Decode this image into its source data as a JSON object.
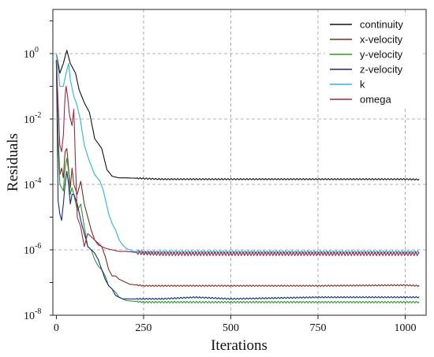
{
  "chart_data": {
    "type": "line",
    "title": "",
    "xlabel": "Iterations",
    "ylabel": "Residuals",
    "xlim": [
      -10,
      1060
    ],
    "ylim_log10": [
      -8,
      1.35
    ],
    "y_scale": "log",
    "grid": true,
    "legend_position": "top-right",
    "x_ticks": [
      {
        "value": 0,
        "label": "0"
      },
      {
        "value": 250,
        "label": "250"
      },
      {
        "value": 500,
        "label": "500"
      },
      {
        "value": 750,
        "label": "750"
      },
      {
        "value": 1000,
        "label": "1000"
      }
    ],
    "y_ticks": [
      {
        "exp": 0,
        "base": "10",
        "power": "0"
      },
      {
        "exp": -2,
        "base": "10",
        "power": "-2"
      },
      {
        "exp": -4,
        "base": "10",
        "power": "-4"
      },
      {
        "exp": -6,
        "base": "10",
        "power": "-6"
      },
      {
        "exp": -8,
        "base": "10",
        "power": "-8"
      }
    ],
    "series": [
      {
        "name": "continuity",
        "color": "#111111",
        "oscillation": [
          0.02,
          9
        ],
        "points": [
          [
            0,
            0
          ],
          [
            10,
            -0.6
          ],
          [
            20,
            -0.3
          ],
          [
            30,
            0.1
          ],
          [
            40,
            -0.3
          ],
          [
            55,
            -0.6
          ],
          [
            65,
            -1.1
          ],
          [
            80,
            -1.5
          ],
          [
            95,
            -1.8
          ],
          [
            110,
            -2.6
          ],
          [
            130,
            -2.9
          ],
          [
            145,
            -3.55
          ],
          [
            160,
            -3.75
          ],
          [
            180,
            -3.8
          ],
          [
            200,
            -3.8
          ],
          [
            250,
            -3.82
          ],
          [
            300,
            -3.84
          ],
          [
            400,
            -3.84
          ],
          [
            500,
            -3.84
          ],
          [
            750,
            -3.84
          ],
          [
            1000,
            -3.84
          ],
          [
            1040,
            -3.85
          ]
        ]
      },
      {
        "name": "x-velocity",
        "color": "#7a2e24",
        "oscillation": [
          0.02,
          9
        ],
        "points": [
          [
            0,
            -0.2
          ],
          [
            5,
            -2.5
          ],
          [
            10,
            -3.7
          ],
          [
            15,
            -3.5
          ],
          [
            20,
            -3.8
          ],
          [
            25,
            -3.0
          ],
          [
            30,
            -2.9
          ],
          [
            35,
            -3.5
          ],
          [
            40,
            -4.1
          ],
          [
            45,
            -3.5
          ],
          [
            50,
            -4.0
          ],
          [
            60,
            -4.3
          ],
          [
            70,
            -3.9
          ],
          [
            80,
            -4.6
          ],
          [
            90,
            -5.0
          ],
          [
            100,
            -5.4
          ],
          [
            110,
            -5.7
          ],
          [
            120,
            -5.8
          ],
          [
            130,
            -5.9
          ],
          [
            140,
            -6.2
          ],
          [
            150,
            -6.6
          ],
          [
            160,
            -6.8
          ],
          [
            170,
            -6.8
          ],
          [
            180,
            -6.9
          ],
          [
            190,
            -6.95
          ],
          [
            200,
            -7.0
          ],
          [
            210,
            -7.05
          ],
          [
            250,
            -7.1
          ],
          [
            300,
            -7.1
          ],
          [
            400,
            -7.1
          ],
          [
            500,
            -7.1
          ],
          [
            750,
            -7.1
          ],
          [
            1000,
            -7.08
          ],
          [
            1040,
            -7.1
          ]
        ]
      },
      {
        "name": "y-velocity",
        "color": "#2a9a2a",
        "oscillation": [
          0.025,
          9
        ],
        "points": [
          [
            0,
            -0.2
          ],
          [
            5,
            -2.8
          ],
          [
            10,
            -4.0
          ],
          [
            20,
            -4.2
          ],
          [
            25,
            -3.5
          ],
          [
            30,
            -3.2
          ],
          [
            35,
            -3.6
          ],
          [
            40,
            -4.3
          ],
          [
            45,
            -4.1
          ],
          [
            50,
            -4.3
          ],
          [
            60,
            -4.8
          ],
          [
            70,
            -4.6
          ],
          [
            80,
            -5.3
          ],
          [
            90,
            -5.9
          ],
          [
            100,
            -6.0
          ],
          [
            110,
            -6.3
          ],
          [
            120,
            -6.5
          ],
          [
            130,
            -6.6
          ],
          [
            140,
            -6.8
          ],
          [
            150,
            -7.1
          ],
          [
            160,
            -7.2
          ],
          [
            170,
            -7.3
          ],
          [
            180,
            -7.45
          ],
          [
            190,
            -7.5
          ],
          [
            200,
            -7.55
          ],
          [
            250,
            -7.6
          ],
          [
            300,
            -7.6
          ],
          [
            400,
            -7.6
          ],
          [
            500,
            -7.6
          ],
          [
            750,
            -7.6
          ],
          [
            1000,
            -7.6
          ],
          [
            1040,
            -7.6
          ]
        ]
      },
      {
        "name": "z-velocity",
        "color": "#1a2a7a",
        "oscillation": [
          0.02,
          9
        ],
        "points": [
          [
            0,
            -0.2
          ],
          [
            5,
            -4.5
          ],
          [
            10,
            -4.9
          ],
          [
            15,
            -5.1
          ],
          [
            20,
            -4.6
          ],
          [
            25,
            -4.0
          ],
          [
            30,
            -3.6
          ],
          [
            35,
            -4.0
          ],
          [
            40,
            -4.6
          ],
          [
            45,
            -4.3
          ],
          [
            50,
            -4.3
          ],
          [
            60,
            -4.6
          ],
          [
            70,
            -5.1
          ],
          [
            80,
            -5.5
          ],
          [
            90,
            -5.9
          ],
          [
            100,
            -6.0
          ],
          [
            110,
            -6.1
          ],
          [
            120,
            -6.3
          ],
          [
            130,
            -6.6
          ],
          [
            140,
            -6.9
          ],
          [
            150,
            -7.1
          ],
          [
            160,
            -7.2
          ],
          [
            170,
            -7.4
          ],
          [
            180,
            -7.45
          ],
          [
            190,
            -7.5
          ],
          [
            200,
            -7.5
          ],
          [
            250,
            -7.5
          ],
          [
            300,
            -7.5
          ],
          [
            400,
            -7.45
          ],
          [
            500,
            -7.5
          ],
          [
            750,
            -7.45
          ],
          [
            1000,
            -7.45
          ],
          [
            1040,
            -7.45
          ]
        ]
      },
      {
        "name": "k",
        "color": "#2ab4dc",
        "oscillation": [
          0.05,
          9
        ],
        "points": [
          [
            0,
            0
          ],
          [
            10,
            -1.0
          ],
          [
            20,
            -1.0
          ],
          [
            30,
            -0.5
          ],
          [
            35,
            -0.3
          ],
          [
            40,
            -0.8
          ],
          [
            50,
            -1.3
          ],
          [
            60,
            -1.6
          ],
          [
            70,
            -2.1
          ],
          [
            80,
            -2.8
          ],
          [
            95,
            -3.3
          ],
          [
            110,
            -3.7
          ],
          [
            125,
            -3.9
          ],
          [
            135,
            -4.2
          ],
          [
            150,
            -4.9
          ],
          [
            160,
            -5.2
          ],
          [
            170,
            -5.4
          ],
          [
            180,
            -5.7
          ],
          [
            190,
            -5.85
          ],
          [
            200,
            -5.95
          ],
          [
            220,
            -6.05
          ],
          [
            240,
            -6.05
          ],
          [
            250,
            -6.08
          ],
          [
            300,
            -6.07
          ],
          [
            400,
            -6.07
          ],
          [
            500,
            -6.07
          ],
          [
            750,
            -6.07
          ],
          [
            1000,
            -6.07
          ],
          [
            1040,
            -6.07
          ]
        ]
      },
      {
        "name": "omega",
        "color": "#9a2a48",
        "oscillation": [
          0.06,
          9
        ],
        "points": [
          [
            0,
            -0.2
          ],
          [
            5,
            -1.5
          ],
          [
            10,
            -2.8
          ],
          [
            15,
            -3.0
          ],
          [
            20,
            -2.5
          ],
          [
            25,
            -1.3
          ],
          [
            28,
            -1.0
          ],
          [
            32,
            -1.3
          ],
          [
            38,
            -1.9
          ],
          [
            45,
            -2.2
          ],
          [
            50,
            -1.7
          ],
          [
            55,
            -3.4
          ],
          [
            60,
            -5.0
          ],
          [
            70,
            -5.3
          ],
          [
            80,
            -5.9
          ],
          [
            90,
            -5.5
          ],
          [
            100,
            -5.6
          ],
          [
            110,
            -5.7
          ],
          [
            120,
            -5.85
          ],
          [
            140,
            -5.95
          ],
          [
            160,
            -6.0
          ],
          [
            180,
            -6.05
          ],
          [
            200,
            -6.05
          ],
          [
            250,
            -6.1
          ],
          [
            300,
            -6.12
          ],
          [
            400,
            -6.12
          ],
          [
            500,
            -6.12
          ],
          [
            750,
            -6.12
          ],
          [
            1000,
            -6.12
          ],
          [
            1040,
            -6.12
          ]
        ]
      }
    ]
  }
}
